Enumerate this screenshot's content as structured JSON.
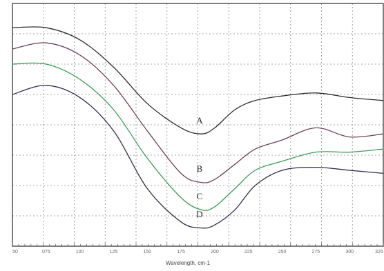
{
  "chart_data": {
    "type": "line",
    "title": "",
    "xlabel": "Wavelength, cm-1",
    "ylabel": "",
    "x_ticks": [
      "50",
      "075",
      "100",
      "125",
      "150",
      "175",
      "200",
      "225",
      "250",
      "275",
      "300",
      "325"
    ],
    "xlim": [
      0,
      11
    ],
    "ylim": [
      0,
      8
    ],
    "grid": true,
    "legend": "none",
    "series": [
      {
        "name": "A",
        "color": "#2b2b2b",
        "x": [
          0,
          1,
          2,
          3,
          4,
          5,
          5.6,
          6,
          6.6,
          7.2,
          8,
          9,
          10,
          11
        ],
        "y": [
          7.2,
          7.2,
          6.8,
          5.9,
          4.7,
          3.9,
          3.7,
          3.9,
          4.5,
          4.8,
          4.95,
          5.05,
          4.9,
          4.8
        ]
      },
      {
        "name": "B",
        "color": "#6e3f57",
        "x": [
          0,
          1,
          2,
          3,
          4,
          5,
          5.6,
          6,
          6.6,
          7.2,
          8,
          9,
          10,
          11
        ],
        "y": [
          6.5,
          6.7,
          6.3,
          5.3,
          3.8,
          2.4,
          2.1,
          2.2,
          2.7,
          3.2,
          3.5,
          3.9,
          3.6,
          3.7
        ]
      },
      {
        "name": "C",
        "color": "#3c9a55",
        "x": [
          0,
          1,
          2,
          3,
          4,
          5,
          5.6,
          6,
          6.6,
          7.2,
          8,
          9,
          10,
          11
        ],
        "y": [
          6.0,
          6.0,
          5.5,
          4.5,
          2.9,
          1.6,
          1.2,
          1.3,
          1.9,
          2.5,
          2.8,
          3.1,
          3.1,
          3.2
        ]
      },
      {
        "name": "D",
        "color": "#2d2d4a",
        "x": [
          0,
          1,
          2,
          3,
          4,
          5,
          5.6,
          6,
          6.6,
          7.2,
          8,
          9,
          10,
          11
        ],
        "y": [
          5.0,
          5.3,
          4.9,
          3.8,
          1.9,
          0.8,
          0.6,
          0.7,
          1.2,
          2.0,
          2.5,
          2.6,
          2.5,
          2.4
        ]
      }
    ],
    "series_label_positions": [
      {
        "name": "A",
        "x": 5.55,
        "y": 4.05
      },
      {
        "name": "B",
        "x": 5.55,
        "y": 2.45
      },
      {
        "name": "C",
        "x": 5.55,
        "y": 1.55
      },
      {
        "name": "D",
        "x": 5.55,
        "y": 0.95
      }
    ]
  }
}
